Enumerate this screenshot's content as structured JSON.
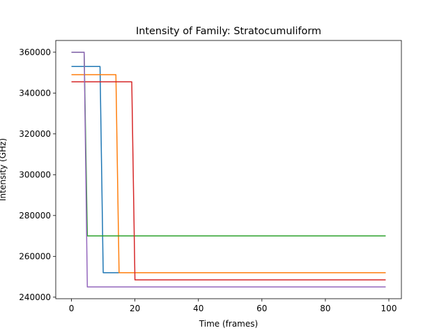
{
  "chart_data": {
    "type": "line",
    "title": "Intensity of Family: Stratocumuliform",
    "xlabel": "Time (frames)",
    "ylabel": "Intensity (GHz)",
    "xlim": [
      -4.95,
      103.95
    ],
    "ylim": [
      239250,
      365750
    ],
    "xticks": [
      0,
      20,
      40,
      60,
      80,
      100
    ],
    "yticks": [
      240000,
      260000,
      280000,
      300000,
      320000,
      340000,
      360000
    ],
    "grid": false,
    "legend": "none",
    "series": [
      {
        "color": "#1f77b4",
        "points": [
          [
            0,
            353000
          ],
          [
            9,
            353000
          ],
          [
            10,
            252000
          ],
          [
            99,
            252000
          ]
        ]
      },
      {
        "color": "#ff7f0e",
        "points": [
          [
            0,
            349000
          ],
          [
            14,
            349000
          ],
          [
            15,
            252000
          ],
          [
            99,
            252000
          ]
        ]
      },
      {
        "color": "#2ca02c",
        "points": [
          [
            0,
            360000
          ],
          [
            4,
            360000
          ],
          [
            5,
            270000
          ],
          [
            99,
            270000
          ]
        ]
      },
      {
        "color": "#d62728",
        "points": [
          [
            0,
            345500
          ],
          [
            19,
            345500
          ],
          [
            20,
            248500
          ],
          [
            99,
            248500
          ]
        ]
      },
      {
        "color": "#9467bd",
        "points": [
          [
            0,
            360000
          ],
          [
            4,
            360000
          ],
          [
            5,
            245000
          ],
          [
            99,
            245000
          ]
        ]
      }
    ]
  }
}
